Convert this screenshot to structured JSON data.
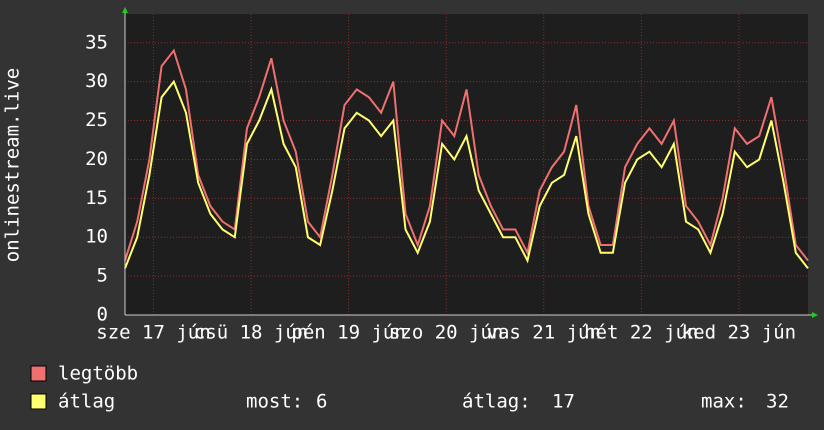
{
  "chart_data": {
    "type": "line",
    "y_label": "onlinestream.live",
    "x": [
      0,
      3,
      6,
      9,
      12,
      15,
      18,
      21,
      24,
      27,
      30,
      33,
      36,
      39,
      42,
      45,
      48,
      51,
      54,
      57,
      60,
      63,
      66,
      69,
      72,
      75,
      78,
      81,
      84,
      87,
      90,
      93,
      96,
      99,
      102,
      105,
      108,
      111,
      114,
      117,
      120,
      123,
      126,
      129,
      132,
      135,
      138,
      141,
      144,
      147,
      150,
      153,
      156,
      159,
      162,
      165,
      168
    ],
    "xlim": [
      0,
      168
    ],
    "xticks": [
      {
        "value": 7,
        "label": "sze 17 jún"
      },
      {
        "value": 31,
        "label": "csü 18 jún"
      },
      {
        "value": 55,
        "label": "pén 19 jún"
      },
      {
        "value": 79,
        "label": "szo 20 jún"
      },
      {
        "value": 103,
        "label": "vas 21 jún"
      },
      {
        "value": 127,
        "label": "hét 22 jún"
      },
      {
        "value": 151,
        "label": "ked 23 jún"
      }
    ],
    "ylim": [
      0,
      38.7
    ],
    "yticks": [
      0,
      5,
      10,
      15,
      20,
      25,
      30,
      35
    ],
    "grid": true,
    "series": [
      {
        "name": "legtöbb",
        "color": "#f07070",
        "values": [
          7,
          12,
          20,
          32,
          34,
          29,
          18,
          14,
          12,
          11,
          24,
          28,
          33,
          25,
          21,
          12,
          10,
          18,
          27,
          29,
          28,
          26,
          30,
          13,
          9,
          14,
          25,
          23,
          29,
          18,
          14,
          11,
          11,
          8,
          16,
          19,
          21,
          27,
          14,
          9,
          9,
          19,
          22,
          24,
          22,
          25,
          14,
          12,
          9,
          15,
          24,
          22,
          23,
          28,
          19,
          9,
          7
        ]
      },
      {
        "name": "átlag",
        "color": "#ffff70",
        "values": [
          6,
          10,
          18,
          28,
          30,
          26,
          17,
          13,
          11,
          10,
          22,
          25,
          29,
          22,
          19,
          10,
          9,
          16,
          24,
          26,
          25,
          23,
          25,
          11,
          8,
          12,
          22,
          20,
          23,
          16,
          13,
          10,
          10,
          7,
          14,
          17,
          18,
          23,
          13,
          8,
          8,
          17,
          20,
          21,
          19,
          22,
          12,
          11,
          8,
          13,
          21,
          19,
          20,
          25,
          17,
          8,
          6
        ]
      }
    ],
    "stats": [
      {
        "label": "most:",
        "value": 6
      },
      {
        "label": "átlag:",
        "value": 17
      },
      {
        "label": "max:",
        "value": 32
      }
    ]
  }
}
